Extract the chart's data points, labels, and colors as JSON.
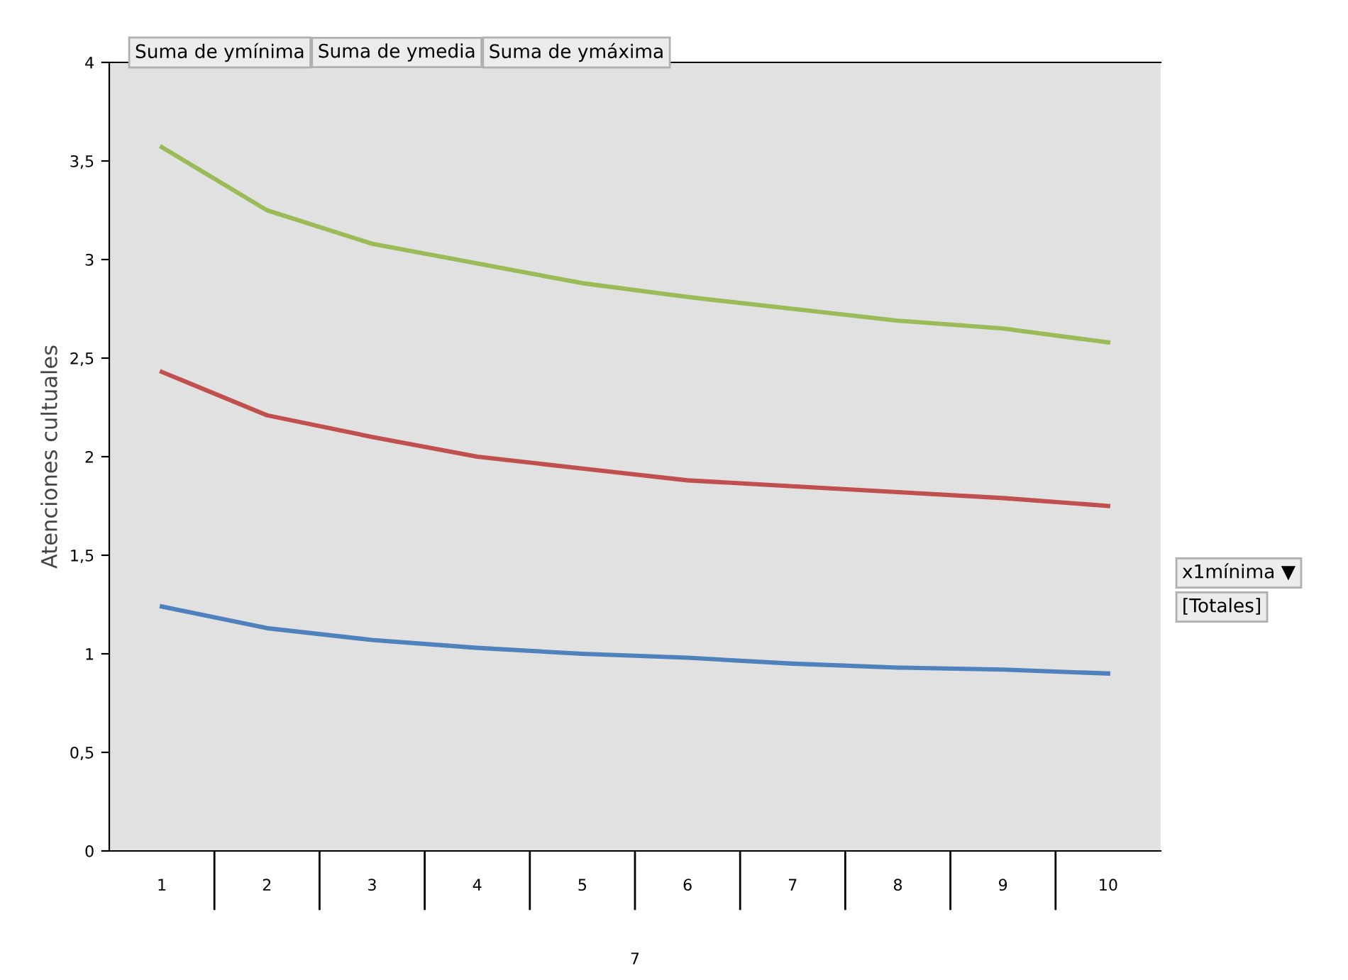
{
  "chart_data": {
    "type": "line",
    "categories": [
      "1",
      "2",
      "3",
      "4",
      "5",
      "6",
      "7",
      "8",
      "9",
      "10"
    ],
    "series": [
      {
        "color": "#4f81bd",
        "values": [
          1.24,
          1.13,
          1.07,
          1.03,
          1.0,
          0.98,
          0.95,
          0.93,
          0.92,
          0.9
        ]
      },
      {
        "color": "#c0504d",
        "values": [
          2.43,
          2.21,
          2.1,
          2.0,
          1.94,
          1.88,
          1.85,
          1.82,
          1.79,
          1.75
        ]
      },
      {
        "color": "#9bbb59",
        "values": [
          3.57,
          3.25,
          3.08,
          2.98,
          2.88,
          2.81,
          2.75,
          2.69,
          2.65,
          2.58
        ]
      }
    ],
    "ylabel": "Atenciones cultuales",
    "xlabel": "7",
    "ylim": [
      0,
      4
    ],
    "yticks": [
      0,
      {
        "value": 0.5,
        "label": "0,5"
      },
      1,
      {
        "value": 1.5,
        "label": "1,5"
      },
      2,
      {
        "value": 2.5,
        "label": "2,5"
      },
      3,
      {
        "value": 3.5,
        "label": "3,5"
      },
      4
    ],
    "annotations": [
      "Suma de ymínima",
      "Suma de ymedia",
      "Suma de ymáxima",
      "x1mínima ▼",
      "[Totales]"
    ],
    "grid": false,
    "marker": "none",
    "line_style": "solid"
  }
}
